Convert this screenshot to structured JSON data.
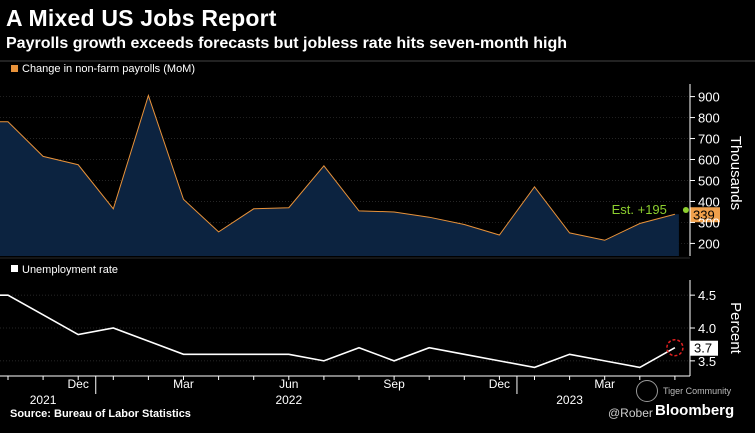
{
  "title": "A Mixed US Jobs Report",
  "subtitle": "Payrolls growth exceeds forecasts but jobless rate hits seven-month high",
  "source": "Source: Bureau of Labor Statistics",
  "watermark": "@Rober",
  "brand": "Bloomberg",
  "tiger": "Tiger Community",
  "colors": {
    "payrolls_fill": "#0c2340",
    "payrolls_line": "#e8923a",
    "estimate": "#8ccf2e",
    "label_bg": "#f0a04b",
    "unemployment_line": "#ffffff",
    "highlight": "#e02020"
  },
  "chart_data": [
    {
      "type": "area",
      "legend": "Change in non-farm payrolls (MoM)",
      "ylabel": "Thousands",
      "ylim": [
        140,
        960
      ],
      "yticks": [
        200,
        300,
        400,
        500,
        600,
        700,
        800,
        900
      ],
      "x": [
        "2021-10",
        "2021-11",
        "2021-12",
        "2022-01",
        "2022-02",
        "2022-03",
        "2022-04",
        "2022-05",
        "2022-06",
        "2022-07",
        "2022-08",
        "2022-09",
        "2022-10",
        "2022-11",
        "2022-12",
        "2023-01",
        "2023-02",
        "2023-03",
        "2023-04",
        "2023-05"
      ],
      "values": [
        780,
        615,
        575,
        365,
        905,
        410,
        255,
        365,
        370,
        570,
        355,
        350,
        325,
        290,
        240,
        470,
        250,
        215,
        295,
        339
      ],
      "estimate": {
        "label": "Est. +195",
        "x": "2023-05",
        "value": 350
      },
      "last_value_label": "339"
    },
    {
      "type": "line",
      "legend": "Unemployment rate",
      "ylabel": "Percent",
      "ylim": [
        3.3,
        4.7
      ],
      "yticks": [
        3.5,
        4.0,
        4.5
      ],
      "ytick_labels": [
        "3.5",
        "4.0",
        "4.5"
      ],
      "x": [
        "2021-10",
        "2021-11",
        "2021-12",
        "2022-01",
        "2022-02",
        "2022-03",
        "2022-04",
        "2022-05",
        "2022-06",
        "2022-07",
        "2022-08",
        "2022-09",
        "2022-10",
        "2022-11",
        "2022-12",
        "2023-01",
        "2023-02",
        "2023-03",
        "2023-04",
        "2023-05"
      ],
      "values": [
        4.5,
        4.2,
        3.9,
        4.0,
        3.8,
        3.6,
        3.6,
        3.6,
        3.6,
        3.5,
        3.7,
        3.5,
        3.7,
        3.6,
        3.5,
        3.4,
        3.6,
        3.5,
        3.4,
        3.7
      ],
      "last_value_label": "3.7"
    }
  ],
  "x_axis": {
    "month_ticks": [
      {
        "x": "2021-12",
        "label": "Dec"
      },
      {
        "x": "2022-03",
        "label": "Mar"
      },
      {
        "x": "2022-06",
        "label": "Jun"
      },
      {
        "x": "2022-09",
        "label": "Sep"
      },
      {
        "x": "2022-12",
        "label": "Dec"
      },
      {
        "x": "2023-03",
        "label": "Mar"
      }
    ],
    "year_labels": [
      {
        "x": "2021-11",
        "label": "2021"
      },
      {
        "x": "2022-06",
        "label": "2022"
      },
      {
        "x": "2023-02",
        "label": "2023"
      }
    ]
  }
}
